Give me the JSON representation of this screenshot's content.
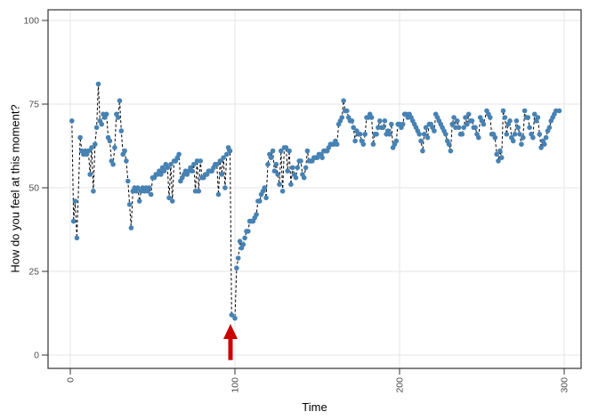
{
  "figure": {
    "kind": "ggplot-style scatter/line time series with event arrow annotation"
  },
  "chart_data": {
    "type": "line",
    "title": "",
    "xlabel": "Time",
    "ylabel": "How do you feel at this moment?",
    "x_ticks": [
      0,
      100,
      200,
      300
    ],
    "y_ticks": [
      0,
      25,
      50,
      75,
      100
    ],
    "xlim": [
      -14,
      311
    ],
    "ylim": [
      -4,
      103.5
    ],
    "grid": "major gridlines only, light gray on white panel with dark border",
    "legend_position": "none",
    "colors": {
      "point": "#4682B4",
      "line": "#000000",
      "gridline": "#E6E6E6",
      "panel_border": "#333333",
      "tick_label": "#4D4D4D",
      "annotation_arrow": "#CC0000"
    },
    "line_style": "dashed",
    "annotation": {
      "type": "arrow-up",
      "x": 97.3,
      "y_base": -1.5,
      "y_tip": 9.3,
      "color": "#CC0000"
    },
    "points": [
      [
        1,
        70
      ],
      [
        2,
        40
      ],
      [
        3,
        46
      ],
      [
        4,
        35
      ],
      [
        6,
        65
      ],
      [
        7,
        61
      ],
      [
        8,
        60
      ],
      [
        9,
        61
      ],
      [
        10,
        60
      ],
      [
        11,
        61
      ],
      [
        12,
        54
      ],
      [
        13,
        62
      ],
      [
        14,
        49
      ],
      [
        15,
        63
      ],
      [
        16,
        68
      ],
      [
        17,
        81
      ],
      [
        18,
        70
      ],
      [
        19,
        69
      ],
      [
        20,
        72
      ],
      [
        21,
        71
      ],
      [
        22,
        72
      ],
      [
        23,
        65
      ],
      [
        24,
        64
      ],
      [
        25,
        58
      ],
      [
        26,
        57
      ],
      [
        27,
        62
      ],
      [
        28,
        72
      ],
      [
        29,
        71
      ],
      [
        30,
        76
      ],
      [
        31,
        67
      ],
      [
        32,
        60
      ],
      [
        33,
        61
      ],
      [
        34,
        58
      ],
      [
        35,
        52
      ],
      [
        36,
        45
      ],
      [
        37,
        38
      ],
      [
        38,
        49
      ],
      [
        39,
        50
      ],
      [
        40,
        49
      ],
      [
        41,
        50
      ],
      [
        42,
        46
      ],
      [
        43,
        49
      ],
      [
        44,
        50
      ],
      [
        45,
        49
      ],
      [
        46,
        50
      ],
      [
        47,
        49
      ],
      [
        48,
        50
      ],
      [
        49,
        48
      ],
      [
        50,
        53
      ],
      [
        51,
        53
      ],
      [
        52,
        54
      ],
      [
        53,
        54
      ],
      [
        54,
        55
      ],
      [
        55,
        54
      ],
      [
        56,
        56
      ],
      [
        57,
        55
      ],
      [
        58,
        57
      ],
      [
        59,
        56
      ],
      [
        60,
        47
      ],
      [
        61,
        57
      ],
      [
        62,
        46
      ],
      [
        63,
        58
      ],
      [
        64,
        58
      ],
      [
        65,
        59
      ],
      [
        66,
        60
      ],
      [
        67,
        52
      ],
      [
        68,
        53
      ],
      [
        69,
        54
      ],
      [
        70,
        55
      ],
      [
        71,
        54
      ],
      [
        72,
        55
      ],
      [
        73,
        56
      ],
      [
        74,
        55
      ],
      [
        75,
        57
      ],
      [
        76,
        49
      ],
      [
        77,
        58
      ],
      [
        78,
        49
      ],
      [
        79,
        58
      ],
      [
        80,
        53
      ],
      [
        81,
        53
      ],
      [
        82,
        54
      ],
      [
        83,
        54
      ],
      [
        84,
        55
      ],
      [
        85,
        55
      ],
      [
        86,
        55
      ],
      [
        87,
        56
      ],
      [
        88,
        57
      ],
      [
        89,
        57
      ],
      [
        90,
        48
      ],
      [
        91,
        58
      ],
      [
        92,
        54
      ],
      [
        93,
        59
      ],
      [
        94,
        50
      ],
      [
        95,
        60
      ],
      [
        96,
        62
      ],
      [
        97,
        61
      ],
      [
        98,
        12
      ],
      [
        100,
        11
      ],
      [
        101,
        26
      ],
      [
        102,
        29
      ],
      [
        103,
        34
      ],
      [
        104,
        32
      ],
      [
        105,
        33
      ],
      [
        106,
        35
      ],
      [
        107,
        37
      ],
      [
        108,
        37
      ],
      [
        109,
        40
      ],
      [
        110,
        40
      ],
      [
        111,
        40
      ],
      [
        112,
        41
      ],
      [
        113,
        42
      ],
      [
        114,
        46
      ],
      [
        115,
        46
      ],
      [
        116,
        48
      ],
      [
        117,
        49
      ],
      [
        118,
        50
      ],
      [
        119,
        47
      ],
      [
        120,
        57
      ],
      [
        121,
        60
      ],
      [
        122,
        59
      ],
      [
        123,
        61
      ],
      [
        124,
        55
      ],
      [
        125,
        57
      ],
      [
        126,
        54
      ],
      [
        127,
        51
      ],
      [
        128,
        61
      ],
      [
        129,
        49
      ],
      [
        130,
        62
      ],
      [
        131,
        62
      ],
      [
        132,
        55
      ],
      [
        133,
        61
      ],
      [
        134,
        51
      ],
      [
        135,
        56
      ],
      [
        136,
        54
      ],
      [
        137,
        53
      ],
      [
        138,
        56
      ],
      [
        139,
        58
      ],
      [
        140,
        58
      ],
      [
        141,
        54
      ],
      [
        142,
        53
      ],
      [
        143,
        56
      ],
      [
        144,
        61
      ],
      [
        145,
        58
      ],
      [
        146,
        58
      ],
      [
        147,
        58
      ],
      [
        148,
        59
      ],
      [
        149,
        59
      ],
      [
        150,
        59
      ],
      [
        151,
        60
      ],
      [
        152,
        60
      ],
      [
        153,
        59
      ],
      [
        154,
        61
      ],
      [
        155,
        61
      ],
      [
        156,
        61
      ],
      [
        157,
        62
      ],
      [
        158,
        63
      ],
      [
        159,
        63
      ],
      [
        160,
        63
      ],
      [
        161,
        64
      ],
      [
        162,
        63
      ],
      [
        163,
        69
      ],
      [
        164,
        70
      ],
      [
        165,
        71
      ],
      [
        166,
        76
      ],
      [
        167,
        73
      ],
      [
        168,
        73
      ],
      [
        169,
        71
      ],
      [
        170,
        70
      ],
      [
        171,
        70
      ],
      [
        172,
        68
      ],
      [
        173,
        64
      ],
      [
        174,
        67
      ],
      [
        175,
        66
      ],
      [
        176,
        66
      ],
      [
        177,
        64
      ],
      [
        178,
        63
      ],
      [
        179,
        66
      ],
      [
        180,
        71
      ],
      [
        181,
        71
      ],
      [
        182,
        72
      ],
      [
        183,
        71
      ],
      [
        184,
        63
      ],
      [
        185,
        66
      ],
      [
        186,
        66
      ],
      [
        187,
        68
      ],
      [
        188,
        70
      ],
      [
        189,
        68
      ],
      [
        190,
        68
      ],
      [
        191,
        70
      ],
      [
        192,
        66
      ],
      [
        193,
        67
      ],
      [
        194,
        66
      ],
      [
        195,
        69
      ],
      [
        196,
        62
      ],
      [
        197,
        63
      ],
      [
        198,
        64
      ],
      [
        199,
        69
      ],
      [
        200,
        69
      ],
      [
        201,
        68
      ],
      [
        202,
        69
      ],
      [
        203,
        72
      ],
      [
        204,
        72
      ],
      [
        205,
        71
      ],
      [
        206,
        72
      ],
      [
        207,
        71
      ],
      [
        208,
        70
      ],
      [
        209,
        69
      ],
      [
        210,
        68
      ],
      [
        211,
        67
      ],
      [
        212,
        66
      ],
      [
        213,
        64
      ],
      [
        214,
        61
      ],
      [
        215,
        66
      ],
      [
        216,
        68
      ],
      [
        217,
        65
      ],
      [
        218,
        69
      ],
      [
        219,
        69
      ],
      [
        220,
        68
      ],
      [
        221,
        67
      ],
      [
        222,
        72
      ],
      [
        223,
        71
      ],
      [
        224,
        70
      ],
      [
        225,
        69
      ],
      [
        226,
        68
      ],
      [
        227,
        67
      ],
      [
        228,
        66
      ],
      [
        229,
        64
      ],
      [
        230,
        63
      ],
      [
        231,
        61
      ],
      [
        232,
        69
      ],
      [
        233,
        71
      ],
      [
        234,
        68
      ],
      [
        235,
        70
      ],
      [
        236,
        68
      ],
      [
        237,
        66
      ],
      [
        238,
        66
      ],
      [
        239,
        68
      ],
      [
        240,
        71
      ],
      [
        241,
        69
      ],
      [
        242,
        72
      ],
      [
        243,
        70
      ],
      [
        244,
        70
      ],
      [
        245,
        68
      ],
      [
        246,
        68
      ],
      [
        247,
        66
      ],
      [
        248,
        65
      ],
      [
        249,
        71
      ],
      [
        250,
        70
      ],
      [
        251,
        69
      ],
      [
        253,
        73
      ],
      [
        254,
        72
      ],
      [
        255,
        71
      ],
      [
        256,
        66
      ],
      [
        257,
        66
      ],
      [
        258,
        65
      ],
      [
        259,
        60
      ],
      [
        260,
        58
      ],
      [
        261,
        61
      ],
      [
        262,
        59
      ],
      [
        263,
        73
      ],
      [
        264,
        71
      ],
      [
        265,
        66
      ],
      [
        266,
        69
      ],
      [
        267,
        70
      ],
      [
        268,
        65
      ],
      [
        269,
        64
      ],
      [
        270,
        66
      ],
      [
        271,
        70
      ],
      [
        272,
        68
      ],
      [
        273,
        66
      ],
      [
        274,
        63
      ],
      [
        275,
        65
      ],
      [
        276,
        73
      ],
      [
        277,
        71
      ],
      [
        278,
        71
      ],
      [
        279,
        68
      ],
      [
        280,
        66
      ],
      [
        281,
        65
      ],
      [
        282,
        72
      ],
      [
        283,
        70
      ],
      [
        284,
        71
      ],
      [
        285,
        66
      ],
      [
        286,
        62
      ],
      [
        287,
        64
      ],
      [
        288,
        63
      ],
      [
        289,
        65
      ],
      [
        290,
        67
      ],
      [
        291,
        68
      ],
      [
        292,
        70
      ],
      [
        293,
        71
      ],
      [
        294,
        72
      ],
      [
        295,
        73
      ],
      [
        297,
        73
      ]
    ]
  }
}
